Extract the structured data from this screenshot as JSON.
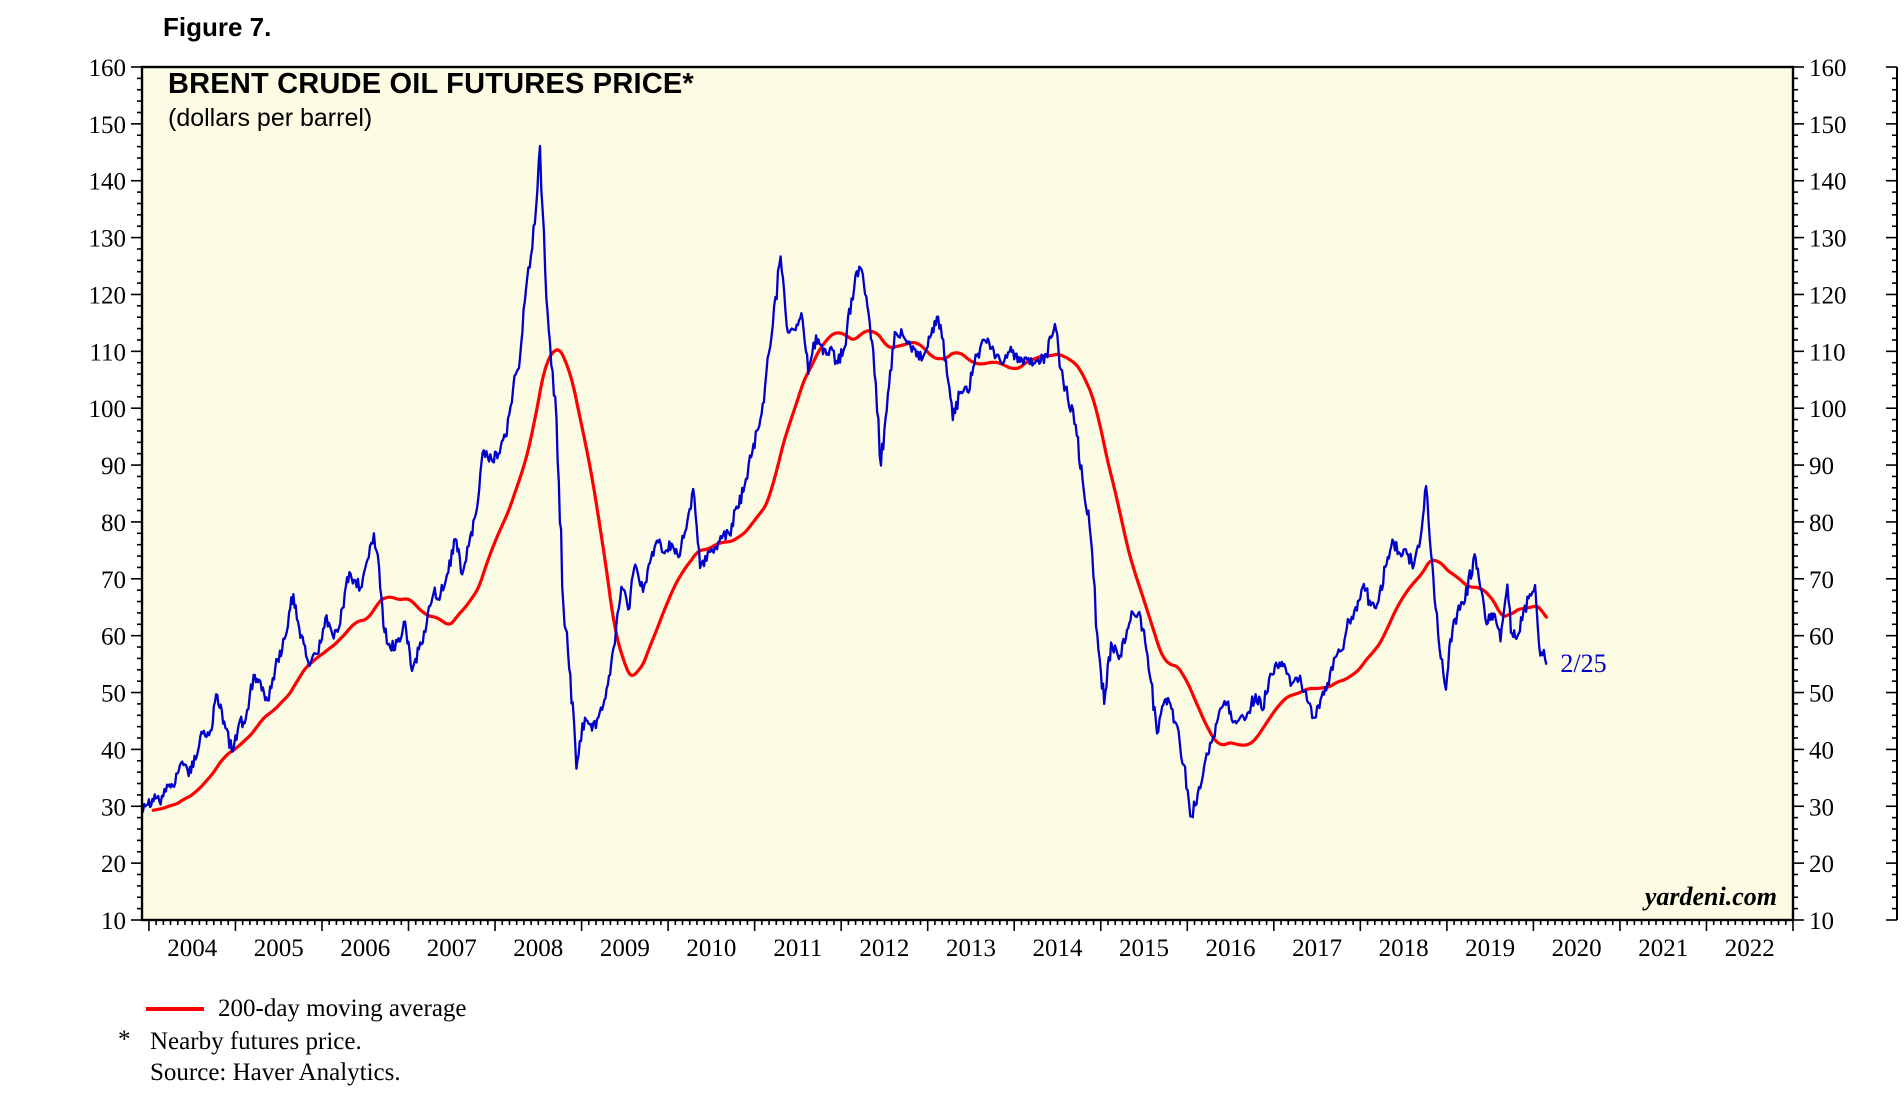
{
  "figure_label": "Figure 7.",
  "chart": {
    "title": "BRENT CRUDE OIL FUTURES PRICE*",
    "subtitle": "(dollars per barrel)",
    "watermark": "yardeni.com"
  },
  "legend": {
    "label": "200-day moving average"
  },
  "footnotes": {
    "asterisk": "*",
    "line1": "Nearby futures price.",
    "line2": "Source: Haver Analytics."
  },
  "chart_data": {
    "type": "line",
    "title": "BRENT CRUDE OIL FUTURES PRICE*",
    "subtitle": "(dollars per barrel)",
    "xlabel": "",
    "ylabel": "dollars per barrel",
    "ylim": [
      10,
      160
    ],
    "ytick_step": 10,
    "y_minor_step": 2,
    "ytick_labels": [
      "10",
      "20",
      "30",
      "40",
      "50",
      "60",
      "70",
      "80",
      "90",
      "100",
      "110",
      "120",
      "130",
      "140",
      "150",
      "160"
    ],
    "xlim": [
      2003.92,
      2023.0
    ],
    "x_year_labels": [
      "2004",
      "2005",
      "2006",
      "2007",
      "2008",
      "2009",
      "2010",
      "2011",
      "2012",
      "2013",
      "2014",
      "2015",
      "2016",
      "2017",
      "2018",
      "2019",
      "2020",
      "2021",
      "2022"
    ],
    "grid": false,
    "legend_position": "below",
    "plot_bg": "#FCFBE3",
    "annotation": {
      "text": "2/25",
      "x": 2020.15,
      "y": 54.9
    },
    "series": [
      {
        "name": "Nearby futures price",
        "color": "#0000CC",
        "points": [
          [
            2003.54,
            28.5
          ],
          [
            2003.62,
            29.9
          ],
          [
            2003.71,
            27.2
          ],
          [
            2003.79,
            29.6
          ],
          [
            2003.87,
            28.9
          ],
          [
            2003.96,
            30.0
          ],
          [
            2004.04,
            31.3
          ],
          [
            2004.12,
            30.9
          ],
          [
            2004.21,
            33.8
          ],
          [
            2004.29,
            33.4
          ],
          [
            2004.37,
            37.6
          ],
          [
            2004.46,
            35.3
          ],
          [
            2004.54,
            38.2
          ],
          [
            2004.62,
            42.8
          ],
          [
            2004.71,
            43.3
          ],
          [
            2004.79,
            49.6
          ],
          [
            2004.87,
            44.9
          ],
          [
            2004.96,
            39.6
          ],
          [
            2005.04,
            44.5
          ],
          [
            2005.12,
            45.4
          ],
          [
            2005.21,
            53.1
          ],
          [
            2005.29,
            51.9
          ],
          [
            2005.37,
            48.6
          ],
          [
            2005.46,
            54.4
          ],
          [
            2005.54,
            57.5
          ],
          [
            2005.62,
            64.1
          ],
          [
            2005.67,
            67.3
          ],
          [
            2005.71,
            62.9
          ],
          [
            2005.79,
            58.5
          ],
          [
            2005.87,
            55.2
          ],
          [
            2005.96,
            56.9
          ],
          [
            2006.04,
            63.1
          ],
          [
            2006.12,
            60.2
          ],
          [
            2006.21,
            62.1
          ],
          [
            2006.29,
            70.3
          ],
          [
            2006.37,
            69.8
          ],
          [
            2006.46,
            68.6
          ],
          [
            2006.54,
            73.7
          ],
          [
            2006.6,
            78.0
          ],
          [
            2006.66,
            72.0
          ],
          [
            2006.71,
            61.7
          ],
          [
            2006.79,
            57.8
          ],
          [
            2006.87,
            58.9
          ],
          [
            2006.96,
            62.5
          ],
          [
            2007.04,
            53.8
          ],
          [
            2007.12,
            57.6
          ],
          [
            2007.21,
            62.1
          ],
          [
            2007.29,
            67.5
          ],
          [
            2007.37,
            67.2
          ],
          [
            2007.46,
            71.1
          ],
          [
            2007.54,
            77.0
          ],
          [
            2007.62,
            70.8
          ],
          [
            2007.71,
            77.2
          ],
          [
            2007.79,
            82.3
          ],
          [
            2007.87,
            92.6
          ],
          [
            2007.96,
            91.0
          ],
          [
            2008.04,
            92.0
          ],
          [
            2008.12,
            95.0
          ],
          [
            2008.21,
            103.6
          ],
          [
            2008.29,
            109.1
          ],
          [
            2008.37,
            122.7
          ],
          [
            2008.46,
            132.4
          ],
          [
            2008.52,
            146.1
          ],
          [
            2008.58,
            124.1
          ],
          [
            2008.62,
            113.9
          ],
          [
            2008.71,
            98.2
          ],
          [
            2008.79,
            65.3
          ],
          [
            2008.87,
            53.2
          ],
          [
            2008.94,
            36.6
          ],
          [
            2008.98,
            41.5
          ],
          [
            2009.04,
            45.6
          ],
          [
            2009.12,
            43.3
          ],
          [
            2009.21,
            46.5
          ],
          [
            2009.29,
            50.8
          ],
          [
            2009.37,
            57.9
          ],
          [
            2009.46,
            68.6
          ],
          [
            2009.54,
            64.6
          ],
          [
            2009.62,
            72.5
          ],
          [
            2009.71,
            67.7
          ],
          [
            2009.79,
            72.8
          ],
          [
            2009.87,
            76.7
          ],
          [
            2009.96,
            74.5
          ],
          [
            2010.04,
            76.2
          ],
          [
            2010.12,
            73.8
          ],
          [
            2010.21,
            78.8
          ],
          [
            2010.29,
            85.8
          ],
          [
            2010.37,
            71.9
          ],
          [
            2010.46,
            74.8
          ],
          [
            2010.54,
            75.6
          ],
          [
            2010.62,
            77.1
          ],
          [
            2010.71,
            77.8
          ],
          [
            2010.79,
            82.7
          ],
          [
            2010.87,
            85.3
          ],
          [
            2010.96,
            91.4
          ],
          [
            2011.04,
            96.3
          ],
          [
            2011.12,
            103.7
          ],
          [
            2011.21,
            114.6
          ],
          [
            2011.3,
            126.7
          ],
          [
            2011.37,
            114.5
          ],
          [
            2011.46,
            113.8
          ],
          [
            2011.54,
            116.7
          ],
          [
            2011.62,
            106.0
          ],
          [
            2011.71,
            112.8
          ],
          [
            2011.79,
            109.5
          ],
          [
            2011.87,
            110.5
          ],
          [
            2011.96,
            107.9
          ],
          [
            2012.04,
            110.7
          ],
          [
            2012.12,
            119.3
          ],
          [
            2012.21,
            124.9
          ],
          [
            2012.29,
            119.7
          ],
          [
            2012.37,
            110.3
          ],
          [
            2012.46,
            89.9
          ],
          [
            2012.54,
            102.6
          ],
          [
            2012.62,
            113.4
          ],
          [
            2012.71,
            112.9
          ],
          [
            2012.79,
            111.7
          ],
          [
            2012.87,
            109.1
          ],
          [
            2012.96,
            109.5
          ],
          [
            2013.04,
            112.9
          ],
          [
            2013.12,
            116.1
          ],
          [
            2013.21,
            108.5
          ],
          [
            2013.29,
            97.9
          ],
          [
            2013.37,
            102.6
          ],
          [
            2013.46,
            102.9
          ],
          [
            2013.54,
            107.7
          ],
          [
            2013.62,
            111.3
          ],
          [
            2013.71,
            111.6
          ],
          [
            2013.79,
            109.1
          ],
          [
            2013.87,
            107.8
          ],
          [
            2013.96,
            110.8
          ],
          [
            2014.04,
            108.1
          ],
          [
            2014.12,
            108.9
          ],
          [
            2014.21,
            107.5
          ],
          [
            2014.29,
            107.8
          ],
          [
            2014.37,
            109.5
          ],
          [
            2014.47,
            114.8
          ],
          [
            2014.54,
            106.8
          ],
          [
            2014.62,
            101.6
          ],
          [
            2014.71,
            97.1
          ],
          [
            2014.79,
            87.4
          ],
          [
            2014.87,
            79.4
          ],
          [
            2014.96,
            60.2
          ],
          [
            2015.04,
            48.0
          ],
          [
            2015.12,
            58.8
          ],
          [
            2015.21,
            55.9
          ],
          [
            2015.29,
            59.5
          ],
          [
            2015.37,
            64.1
          ],
          [
            2015.46,
            63.3
          ],
          [
            2015.54,
            56.6
          ],
          [
            2015.65,
            42.8
          ],
          [
            2015.71,
            47.6
          ],
          [
            2015.79,
            48.4
          ],
          [
            2015.87,
            44.6
          ],
          [
            2015.96,
            37.3
          ],
          [
            2016.05,
            28.2
          ],
          [
            2016.12,
            32.2
          ],
          [
            2016.21,
            38.2
          ],
          [
            2016.29,
            41.6
          ],
          [
            2016.37,
            46.7
          ],
          [
            2016.46,
            48.3
          ],
          [
            2016.54,
            44.9
          ],
          [
            2016.62,
            45.8
          ],
          [
            2016.71,
            46.6
          ],
          [
            2016.79,
            49.7
          ],
          [
            2016.87,
            46.9
          ],
          [
            2016.96,
            53.3
          ],
          [
            2017.04,
            54.6
          ],
          [
            2017.12,
            55.0
          ],
          [
            2017.21,
            51.6
          ],
          [
            2017.29,
            52.3
          ],
          [
            2017.37,
            50.3
          ],
          [
            2017.46,
            45.6
          ],
          [
            2017.54,
            48.7
          ],
          [
            2017.62,
            51.7
          ],
          [
            2017.71,
            56.2
          ],
          [
            2017.79,
            57.5
          ],
          [
            2017.87,
            62.7
          ],
          [
            2017.96,
            64.4
          ],
          [
            2018.04,
            69.1
          ],
          [
            2018.12,
            65.3
          ],
          [
            2018.21,
            66.0
          ],
          [
            2018.29,
            72.1
          ],
          [
            2018.37,
            76.9
          ],
          [
            2018.46,
            74.4
          ],
          [
            2018.54,
            74.3
          ],
          [
            2018.62,
            72.5
          ],
          [
            2018.71,
            78.9
          ],
          [
            2018.76,
            86.3
          ],
          [
            2018.83,
            72.9
          ],
          [
            2018.87,
            64.8
          ],
          [
            2018.96,
            53.2
          ],
          [
            2018.99,
            50.5
          ],
          [
            2019.04,
            59.4
          ],
          [
            2019.12,
            64.0
          ],
          [
            2019.21,
            66.1
          ],
          [
            2019.32,
            74.3
          ],
          [
            2019.37,
            70.1
          ],
          [
            2019.46,
            62.0
          ],
          [
            2019.54,
            63.9
          ],
          [
            2019.62,
            59.0
          ],
          [
            2019.7,
            69.0
          ],
          [
            2019.74,
            60.5
          ],
          [
            2019.79,
            59.7
          ],
          [
            2019.87,
            62.7
          ],
          [
            2019.96,
            67.3
          ],
          [
            2020.02,
            68.9
          ],
          [
            2020.08,
            56.5
          ],
          [
            2020.12,
            57.5
          ],
          [
            2020.15,
            54.9
          ]
        ]
      },
      {
        "name": "200-day moving average",
        "color": "#FF0000",
        "derived": "trailing mean of 'Nearby futures price' over 200 trading days (~0.8 year window)",
        "window_years": 0.8,
        "draw_from": 2004.05
      }
    ]
  }
}
